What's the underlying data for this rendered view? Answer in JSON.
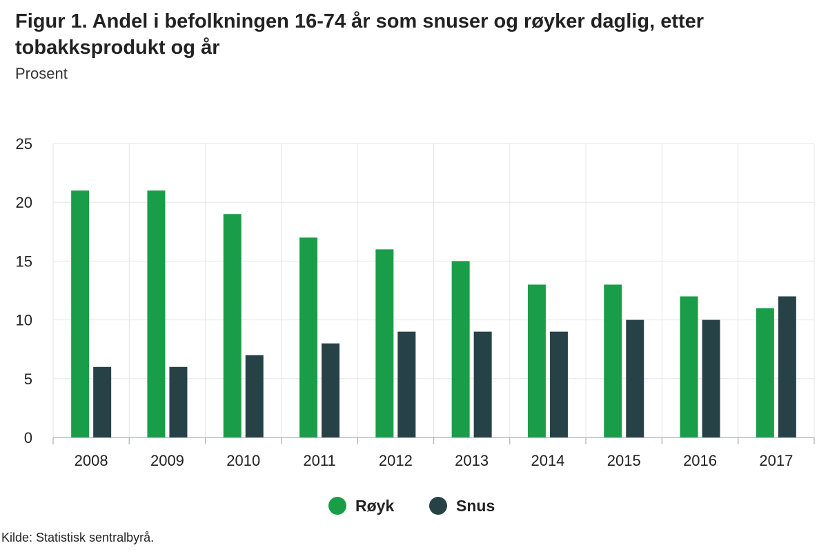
{
  "figure": {
    "title": "Figur 1. Andel i befolkningen 16-74 år som snuser og røyker daglig, etter tobakksprodukt og år",
    "subtitle": "Prosent",
    "source": "Kilde: Statistisk sentralbyrå."
  },
  "chart_data": {
    "type": "bar",
    "title": "Figur 1. Andel i befolkningen 16-74 år som snuser og røyker daglig, etter tobakksprodukt og år",
    "subtitle": "Prosent",
    "xlabel": "",
    "ylabel": "Prosent",
    "ylim": [
      0,
      25
    ],
    "yticks": [
      0,
      5,
      10,
      15,
      20,
      25
    ],
    "grid": true,
    "legend": "bottom-center",
    "categories": [
      "2008",
      "2009",
      "2010",
      "2011",
      "2012",
      "2013",
      "2014",
      "2015",
      "2016",
      "2017"
    ],
    "series": [
      {
        "name": "Røyk",
        "color": "#1a9d49",
        "values": [
          21,
          21,
          19,
          17,
          16,
          15,
          13,
          13,
          12,
          11
        ]
      },
      {
        "name": "Snus",
        "color": "#274247",
        "values": [
          6,
          6,
          7,
          8,
          9,
          9,
          9,
          10,
          10,
          12
        ]
      }
    ]
  }
}
